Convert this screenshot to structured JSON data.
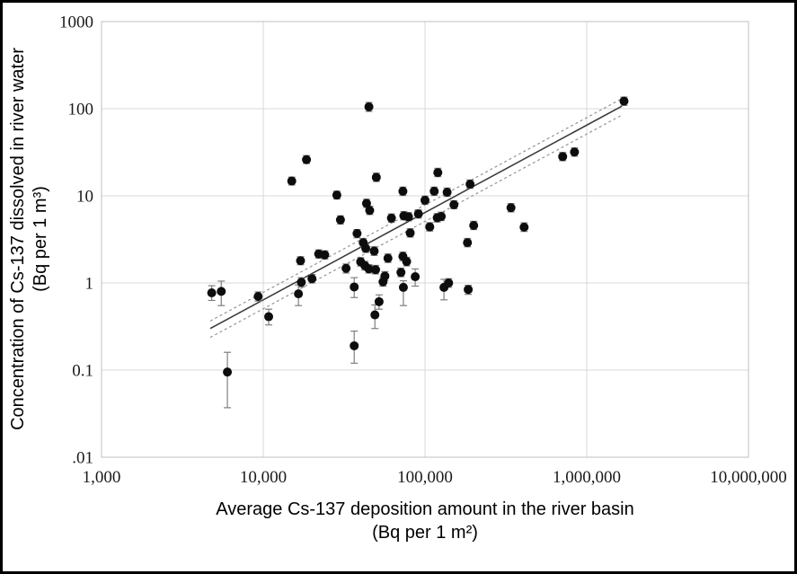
{
  "figure": {
    "border_color": "#000000",
    "background": "#ffffff"
  },
  "chart_data": {
    "type": "scatter",
    "title": "",
    "xlabel_line1": "Average Cs-137 deposition amount in the river basin",
    "xlabel_line2": "(Bq per 1 m²)",
    "ylabel_line1": "Concentration of Cs-137 dissolved in river water",
    "ylabel_line2": "(Bq per 1 m³)",
    "x_scale": "log",
    "y_scale": "log",
    "xlim": [
      1000,
      10000000
    ],
    "ylim": [
      0.01,
      1000
    ],
    "grid": true,
    "legend": "none",
    "x_ticks": [
      {
        "value": 1000,
        "label": "1,000"
      },
      {
        "value": 10000,
        "label": "10,000"
      },
      {
        "value": 100000,
        "label": "100,000"
      },
      {
        "value": 1000000,
        "label": "1,000,000"
      },
      {
        "value": 10000000,
        "label": "10,000,000"
      }
    ],
    "y_ticks": [
      {
        "value": 1000,
        "label": "1000"
      },
      {
        "value": 100,
        "label": "100"
      },
      {
        "value": 10,
        "label": "10"
      },
      {
        "value": 1,
        "label": "1"
      },
      {
        "value": 0.1,
        "label": "0.1"
      },
      {
        "value": 0.01,
        "label": ".01"
      }
    ],
    "colors": {
      "marker": "#0d0d0d",
      "error_bar": "#7f7f7f",
      "gridline": "#d9d9d9",
      "plot_border": "#bfbfbf",
      "trend_line": "#3a3a3a",
      "confidence_line": "#8c8c8c",
      "tick_text": "#1a1a1a"
    },
    "trend_line": {
      "x1": 4700,
      "y1": 0.3,
      "x2": 1650000,
      "y2": 107
    },
    "confidence_band": {
      "upper_factor": 1.22,
      "lower_factor": 0.79,
      "style": "dashed"
    },
    "points_format": [
      "x",
      "y",
      "err_low",
      "err_high"
    ],
    "points": [
      [
        4800,
        0.77,
        0.63,
        0.93
      ],
      [
        5500,
        0.8,
        0.55,
        1.05
      ],
      [
        6000,
        0.095,
        0.037,
        0.16
      ],
      [
        9300,
        0.7,
        0.62,
        0.79
      ],
      [
        10800,
        0.41,
        0.33,
        0.5
      ],
      [
        15000,
        14.8,
        13.3,
        16.4
      ],
      [
        16500,
        0.75,
        0.55,
        0.95
      ],
      [
        17000,
        1.8,
        1.62,
        2.0
      ],
      [
        17200,
        1.02,
        0.9,
        1.15
      ],
      [
        18500,
        26,
        23.5,
        29
      ],
      [
        20000,
        1.12,
        1.0,
        1.25
      ],
      [
        22000,
        2.15,
        1.93,
        2.4
      ],
      [
        24000,
        2.1,
        1.88,
        2.34
      ],
      [
        28500,
        10.2,
        9.2,
        11.3
      ],
      [
        30000,
        5.3,
        4.75,
        5.9
      ],
      [
        32500,
        1.47,
        1.3,
        1.65
      ],
      [
        36500,
        0.9,
        0.68,
        1.15
      ],
      [
        36500,
        0.19,
        0.12,
        0.28
      ],
      [
        38000,
        3.7,
        3.3,
        4.1
      ],
      [
        40000,
        1.75,
        1.56,
        1.95
      ],
      [
        41500,
        2.9,
        2.6,
        3.23
      ],
      [
        42500,
        1.58,
        1.41,
        1.77
      ],
      [
        43000,
        2.5,
        2.24,
        2.8
      ],
      [
        43500,
        8.2,
        7.35,
        9.15
      ],
      [
        45000,
        105,
        93,
        118
      ],
      [
        45000,
        1.45,
        1.3,
        1.62
      ],
      [
        45500,
        6.8,
        6.1,
        7.6
      ],
      [
        48500,
        2.32,
        2.07,
        2.6
      ],
      [
        49000,
        0.43,
        0.3,
        0.56
      ],
      [
        49500,
        1.42,
        1.27,
        1.59
      ],
      [
        50000,
        16.3,
        14.6,
        18.2
      ],
      [
        52000,
        0.61,
        0.5,
        0.73
      ],
      [
        55000,
        1.03,
        0.92,
        1.16
      ],
      [
        56500,
        1.2,
        1.07,
        1.35
      ],
      [
        59000,
        1.92,
        1.72,
        2.15
      ],
      [
        62000,
        5.55,
        4.97,
        6.2
      ],
      [
        71000,
        1.32,
        1.18,
        1.48
      ],
      [
        73000,
        2.02,
        1.8,
        2.26
      ],
      [
        74000,
        5.9,
        5.3,
        6.6
      ],
      [
        73000,
        11.3,
        10.1,
        12.6
      ],
      [
        73500,
        0.89,
        0.55,
        1.06
      ],
      [
        77000,
        1.76,
        1.57,
        1.97
      ],
      [
        79000,
        5.75,
        5.15,
        6.4
      ],
      [
        81000,
        3.75,
        3.36,
        4.2
      ],
      [
        87000,
        1.18,
        0.92,
        1.45
      ],
      [
        91000,
        6.2,
        5.55,
        6.9
      ],
      [
        100000,
        8.9,
        8.0,
        9.95
      ],
      [
        107000,
        4.4,
        3.94,
        4.92
      ],
      [
        114000,
        11.3,
        10.1,
        12.6
      ],
      [
        120000,
        18.5,
        16.6,
        20.7
      ],
      [
        119000,
        5.6,
        5.0,
        6.25
      ],
      [
        126000,
        5.8,
        5.2,
        6.5
      ],
      [
        131000,
        0.89,
        0.64,
        1.1
      ],
      [
        140000,
        1.0,
        0.89,
        1.12
      ],
      [
        137000,
        11.0,
        9.85,
        12.3
      ],
      [
        151000,
        7.9,
        7.1,
        8.8
      ],
      [
        183000,
        2.9,
        2.6,
        3.24
      ],
      [
        185000,
        0.84,
        0.74,
        0.94
      ],
      [
        190000,
        13.6,
        12.2,
        15.2
      ],
      [
        200000,
        4.57,
        4.1,
        5.1
      ],
      [
        340000,
        7.3,
        6.54,
        8.15
      ],
      [
        410000,
        4.37,
        3.9,
        4.9
      ],
      [
        710000,
        28.2,
        25.3,
        31.5
      ],
      [
        840000,
        31.8,
        28.5,
        35.5
      ],
      [
        1700000,
        122,
        109,
        136
      ]
    ]
  }
}
